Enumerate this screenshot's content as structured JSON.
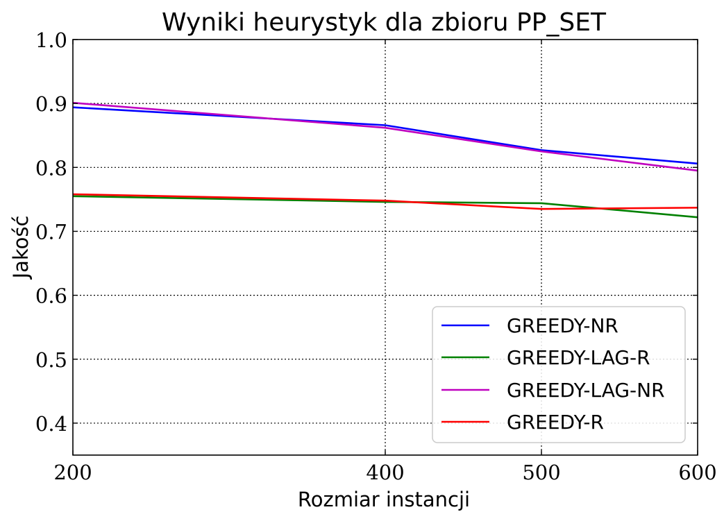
{
  "chart_data": {
    "type": "line",
    "title": "Wyniki heurystyk dla zbioru PP_SET",
    "xlabel": "Rozmiar instancji",
    "ylabel": "Jakość",
    "x": [
      200,
      400,
      500,
      600
    ],
    "xlim": [
      200,
      600
    ],
    "ylim": [
      0.35,
      1.0
    ],
    "xticks": [
      "200",
      "400",
      "500",
      "600"
    ],
    "yticks": [
      "0.4",
      "0.5",
      "0.6",
      "0.7",
      "0.8",
      "0.9",
      "1.0"
    ],
    "grid": true,
    "legend_position": "lower-right",
    "series": [
      {
        "name": "GREEDY-NR",
        "color": "#0000ff",
        "values": [
          0.894,
          0.866,
          0.827,
          0.806
        ]
      },
      {
        "name": "GREEDY-LAG-R",
        "color": "#008000",
        "values": [
          0.755,
          0.746,
          0.744,
          0.722
        ]
      },
      {
        "name": "GREEDY-LAG-NR",
        "color": "#bf00bf",
        "values": [
          0.901,
          0.862,
          0.825,
          0.795
        ]
      },
      {
        "name": "GREEDY-R",
        "color": "#ff0000",
        "values": [
          0.758,
          0.748,
          0.735,
          0.737
        ]
      }
    ]
  }
}
